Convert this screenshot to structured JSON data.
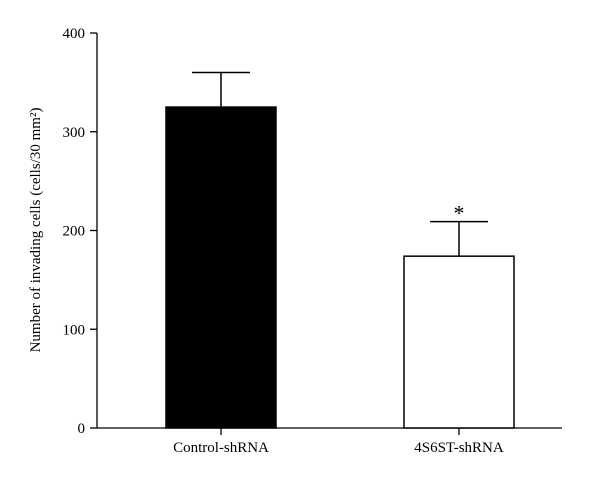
{
  "chart_data": {
    "type": "bar",
    "title": "",
    "xlabel": "",
    "ylabel": "Number of invading cells (cells/30 mm²)",
    "ylim": [
      0,
      400
    ],
    "yticks": [
      0,
      100,
      200,
      300,
      400
    ],
    "grid": false,
    "legend": "none",
    "categories": [
      "Control-shRNA",
      "4S6ST-shRNA"
    ],
    "values": [
      325,
      174
    ],
    "errors": [
      35,
      35
    ],
    "bar_colors": [
      "#000000",
      "#ffffff"
    ],
    "bar_edge_color": "#000000",
    "annotations": [
      {
        "category": "4S6ST-shRNA",
        "text": "*"
      }
    ]
  }
}
